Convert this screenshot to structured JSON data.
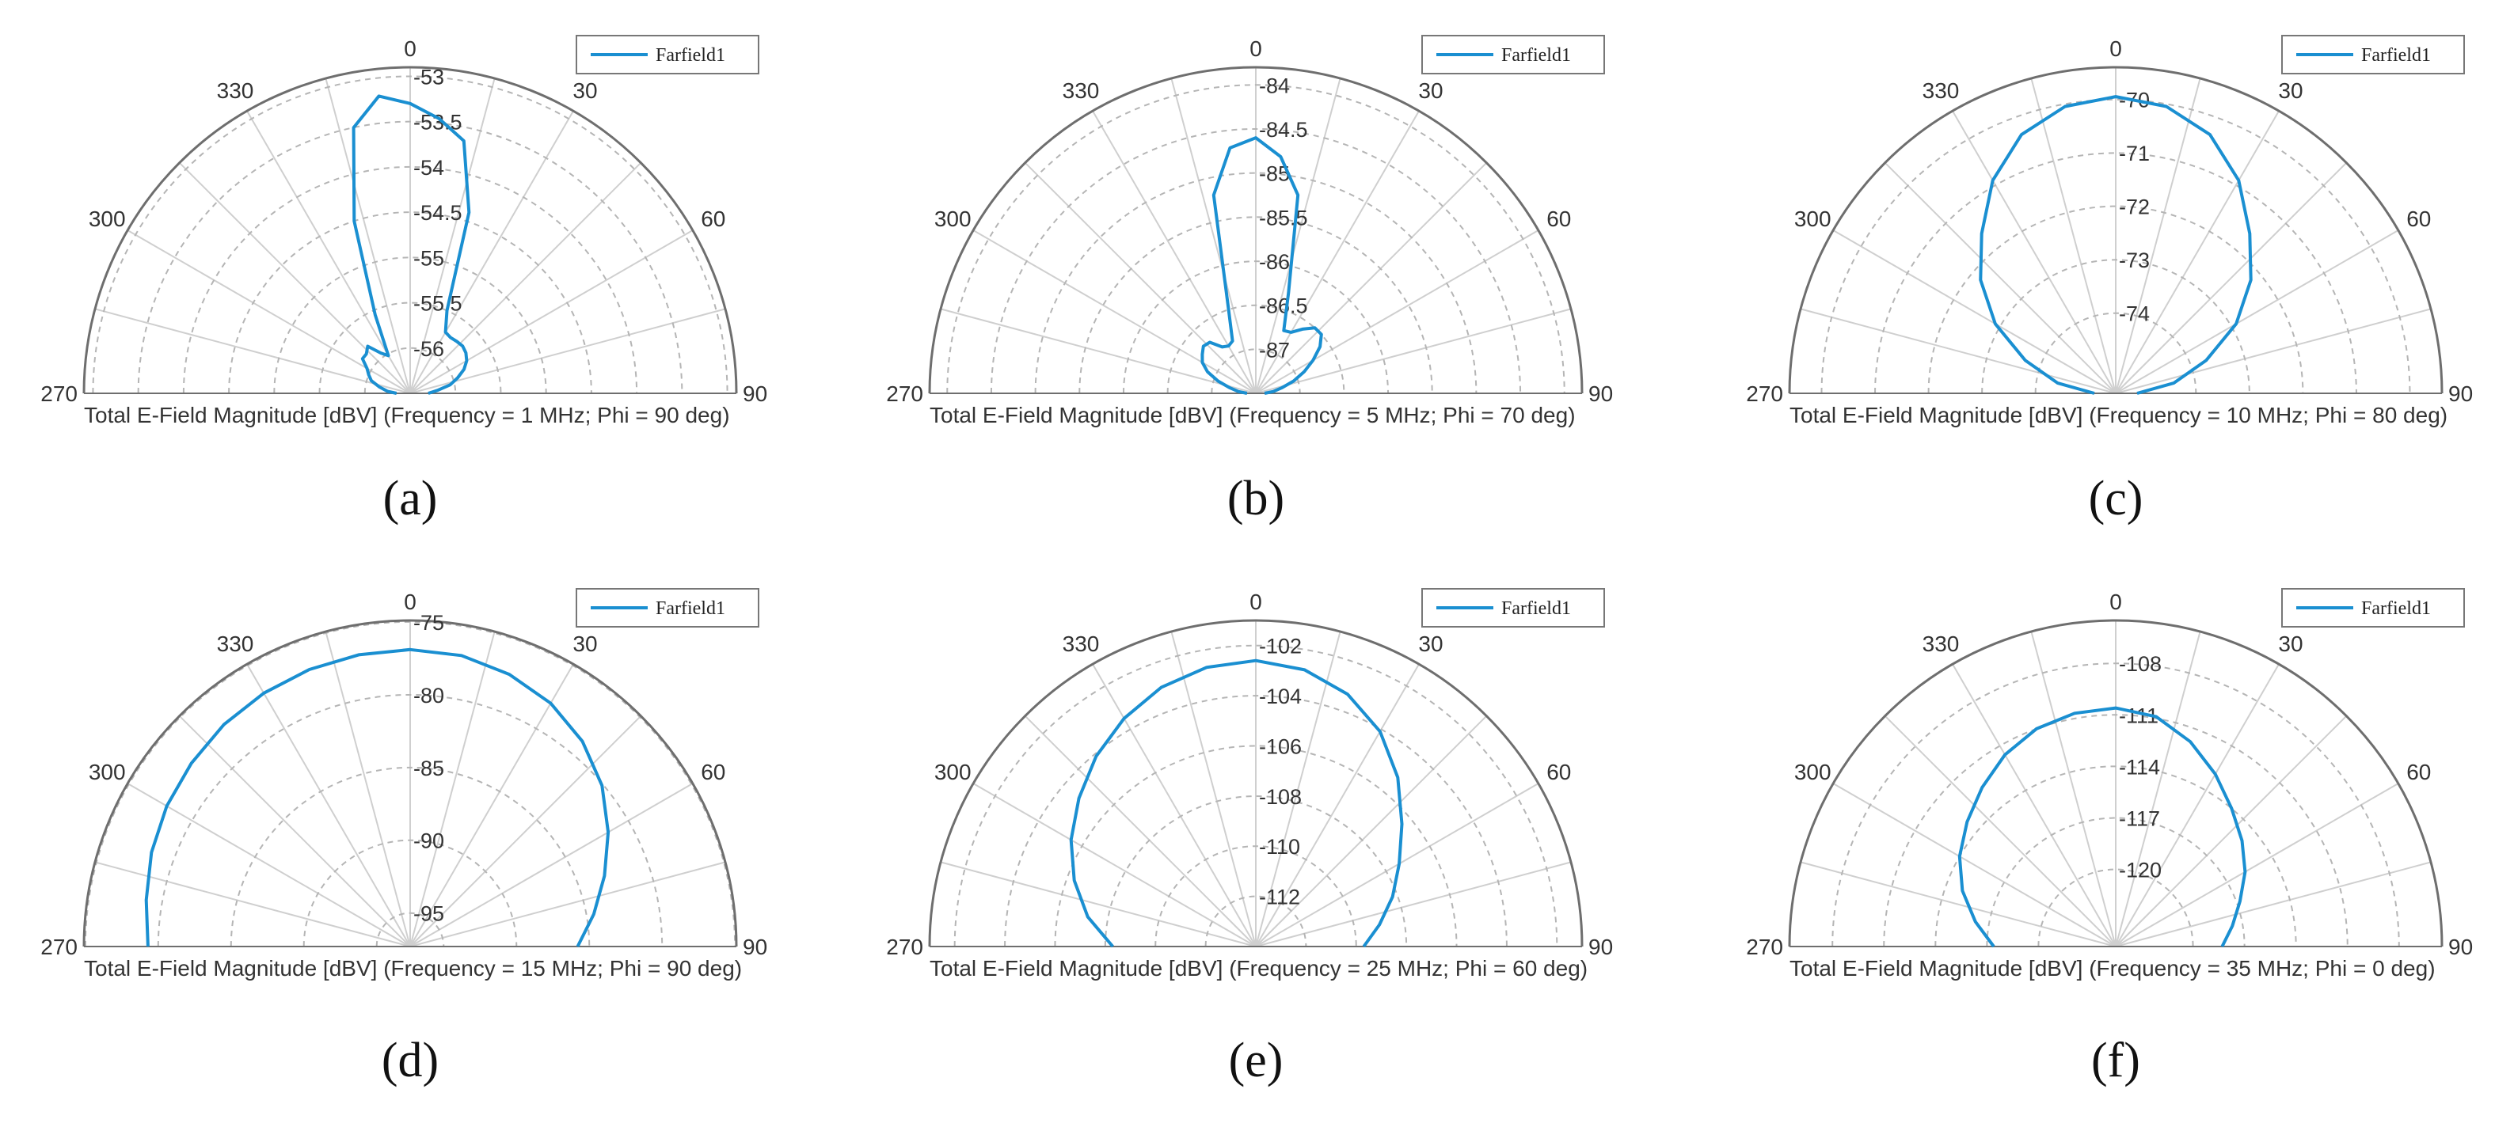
{
  "figure": {
    "series_color": "#1a8fd1",
    "angle_labels": [
      "0",
      "30",
      "60",
      "90",
      "270",
      "300",
      "330"
    ]
  },
  "chart_data": [
    {
      "type": "polar-line",
      "panel_label": "(a)",
      "caption": "Total E-Field Magnitude [dBV] (Frequency = 1 MHz; Phi = 90 deg)",
      "legend": [
        "Farfield1"
      ],
      "theta_range": [
        -90,
        90
      ],
      "r_range": [
        -56.5,
        -52.9
      ],
      "r_ticks": [
        "-53",
        "-53.5",
        "-54",
        "-54.5",
        "-55",
        "-55.5",
        "-56"
      ],
      "r_tick_values": [
        -53,
        -53.5,
        -54,
        -54.5,
        -55,
        -55.5,
        -56
      ],
      "series": [
        {
          "name": "Farfield1",
          "theta": [
            -90,
            -85,
            -78,
            -72,
            -66,
            -60,
            -54,
            -48,
            -42,
            -36,
            -30,
            -24,
            -18,
            -12,
            -6,
            0,
            6,
            12,
            18,
            24,
            30,
            36,
            42,
            48,
            54,
            60,
            66,
            72,
            78,
            84,
            90
          ],
          "r": [
            -56.35,
            -56.25,
            -56.15,
            -56.05,
            -56.0,
            -55.95,
            -55.85,
            -55.85,
            -55.8,
            -55.95,
            -56.02,
            -55.55,
            -54.5,
            -53.5,
            -53.2,
            -53.3,
            -53.45,
            -53.65,
            -54.4,
            -55.5,
            -55.72,
            -55.74,
            -55.73,
            -55.72,
            -55.74,
            -55.78,
            -55.85,
            -55.95,
            -56.05,
            -56.2,
            -56.3
          ]
        }
      ]
    },
    {
      "type": "polar-line",
      "panel_label": "(b)",
      "caption": "Total E-Field Magnitude [dBV] (Frequency = 5 MHz; Phi = 70 deg)",
      "legend": [
        "Farfield1"
      ],
      "theta_range": [
        -90,
        90
      ],
      "r_range": [
        -87.5,
        -83.8
      ],
      "r_ticks": [
        "-84",
        "-84.5",
        "-85",
        "-85.5",
        "-86",
        "-86.5",
        "-87"
      ],
      "r_tick_values": [
        -84,
        -84.5,
        -85,
        -85.5,
        -86,
        -86.5,
        -87
      ],
      "series": [
        {
          "name": "Farfield1",
          "theta": [
            -90,
            -84,
            -78,
            -72,
            -66,
            -60,
            -54,
            -48,
            -42,
            -36,
            -30,
            -24,
            -18,
            -12,
            -6,
            0,
            6,
            12,
            18,
            24,
            30,
            36,
            42,
            48,
            54,
            60,
            66,
            72,
            78,
            84,
            90
          ],
          "r": [
            -87.4,
            -87.3,
            -87.2,
            -87.05,
            -86.9,
            -86.8,
            -86.75,
            -86.7,
            -86.72,
            -86.85,
            -86.88,
            -86.85,
            -86.5,
            -85.2,
            -84.7,
            -84.6,
            -84.8,
            -85.2,
            -86.3,
            -86.72,
            -86.7,
            -86.6,
            -86.5,
            -86.5,
            -86.6,
            -86.75,
            -86.9,
            -87.05,
            -87.2,
            -87.3,
            -87.4
          ]
        }
      ]
    },
    {
      "type": "polar-line",
      "panel_label": "(c)",
      "caption": "Total E-Field Magnitude [dBV] (Frequency = 10 MHz; Phi = 80 deg)",
      "legend": [
        "Farfield1"
      ],
      "theta_range": [
        -90,
        90
      ],
      "r_range": [
        -75.5,
        -69.4
      ],
      "r_ticks": [
        "-70",
        "-71",
        "-72",
        "-73",
        "-74"
      ],
      "r_tick_values": [
        -70,
        -71,
        -72,
        -73,
        -74
      ],
      "series": [
        {
          "name": "Farfield1",
          "theta": [
            -90,
            -80,
            -70,
            -60,
            -50,
            -40,
            -30,
            -20,
            -10,
            0,
            10,
            20,
            30,
            40,
            50,
            60,
            70,
            80,
            90
          ],
          "r": [
            -75.1,
            -74.4,
            -73.7,
            -72.9,
            -72.2,
            -71.6,
            -70.9,
            -70.35,
            -70.05,
            -69.95,
            -70.05,
            -70.35,
            -70.9,
            -71.6,
            -72.2,
            -72.9,
            -73.7,
            -74.4,
            -75.1
          ]
        }
      ]
    },
    {
      "type": "polar-line",
      "panel_label": "(d)",
      "caption": "Total E-Field Magnitude [dBV] (Frequency = 15 MHz; Phi = 90 deg)",
      "legend": [
        "Farfield1"
      ],
      "theta_range": [
        -90,
        90
      ],
      "r_range": [
        -97.3,
        -74.9
      ],
      "r_ticks": [
        "-75",
        "-80",
        "-85",
        "-90",
        "-95"
      ],
      "r_tick_values": [
        -75,
        -80,
        -85,
        -90,
        -95
      ],
      "series": [
        {
          "name": "Farfield1",
          "theta": [
            -90,
            -80,
            -70,
            -60,
            -50,
            -40,
            -30,
            -20,
            -10,
            0,
            10,
            20,
            30,
            40,
            50,
            60,
            70,
            80,
            90
          ],
          "r": [
            -79.3,
            -78.9,
            -78.4,
            -78.0,
            -77.7,
            -77.4,
            -77.2,
            -77.05,
            -76.95,
            -76.9,
            -77.0,
            -77.4,
            -78.0,
            -78.9,
            -80.1,
            -81.6,
            -83.1,
            -84.5,
            -85.8
          ]
        }
      ]
    },
    {
      "type": "polar-line",
      "panel_label": "(e)",
      "caption": "Total E-Field Magnitude [dBV] (Frequency = 25 MHz; Phi = 60 deg)",
      "legend": [
        "Farfield1"
      ],
      "theta_range": [
        -90,
        90
      ],
      "r_range": [
        -114,
        -101
      ],
      "r_ticks": [
        "-102",
        "-104",
        "-106",
        "-108",
        "-110",
        "-112"
      ],
      "r_tick_values": [
        -102,
        -104,
        -106,
        -108,
        -110,
        -112
      ],
      "series": [
        {
          "name": "Farfield1",
          "theta": [
            -90,
            -80,
            -70,
            -60,
            -50,
            -40,
            -30,
            -20,
            -10,
            0,
            10,
            20,
            30,
            40,
            50,
            60,
            70,
            80,
            90
          ],
          "r": [
            -108.3,
            -107.2,
            -106.3,
            -105.5,
            -104.8,
            -104.1,
            -103.5,
            -103.0,
            -102.7,
            -102.6,
            -102.8,
            -103.3,
            -104.1,
            -105.2,
            -106.4,
            -107.4,
            -108.2,
            -109.0,
            -109.7
          ]
        }
      ]
    },
    {
      "type": "polar-line",
      "panel_label": "(f)",
      "caption": "Total E-Field Magnitude [dBV] (Frequency = 35 MHz; Phi = 0 deg)",
      "legend": [
        "Farfield1"
      ],
      "theta_range": [
        -90,
        90
      ],
      "r_range": [
        -124.5,
        -105.5
      ],
      "r_ticks": [
        "-108",
        "-111",
        "-114",
        "-117",
        "-120"
      ],
      "r_tick_values": [
        -108,
        -111,
        -114,
        -117,
        -120
      ],
      "series": [
        {
          "name": "Farfield1",
          "theta": [
            -90,
            -80,
            -70,
            -60,
            -50,
            -40,
            -30,
            -20,
            -10,
            0,
            10,
            20,
            30,
            40,
            50,
            60,
            70,
            80,
            90
          ],
          "r": [
            -117.4,
            -116.2,
            -115.0,
            -114.0,
            -113.2,
            -112.4,
            -111.6,
            -111.0,
            -110.7,
            -110.6,
            -110.9,
            -111.8,
            -112.9,
            -114.0,
            -114.9,
            -115.8,
            -116.8,
            -117.6,
            -118.3
          ]
        }
      ]
    }
  ]
}
